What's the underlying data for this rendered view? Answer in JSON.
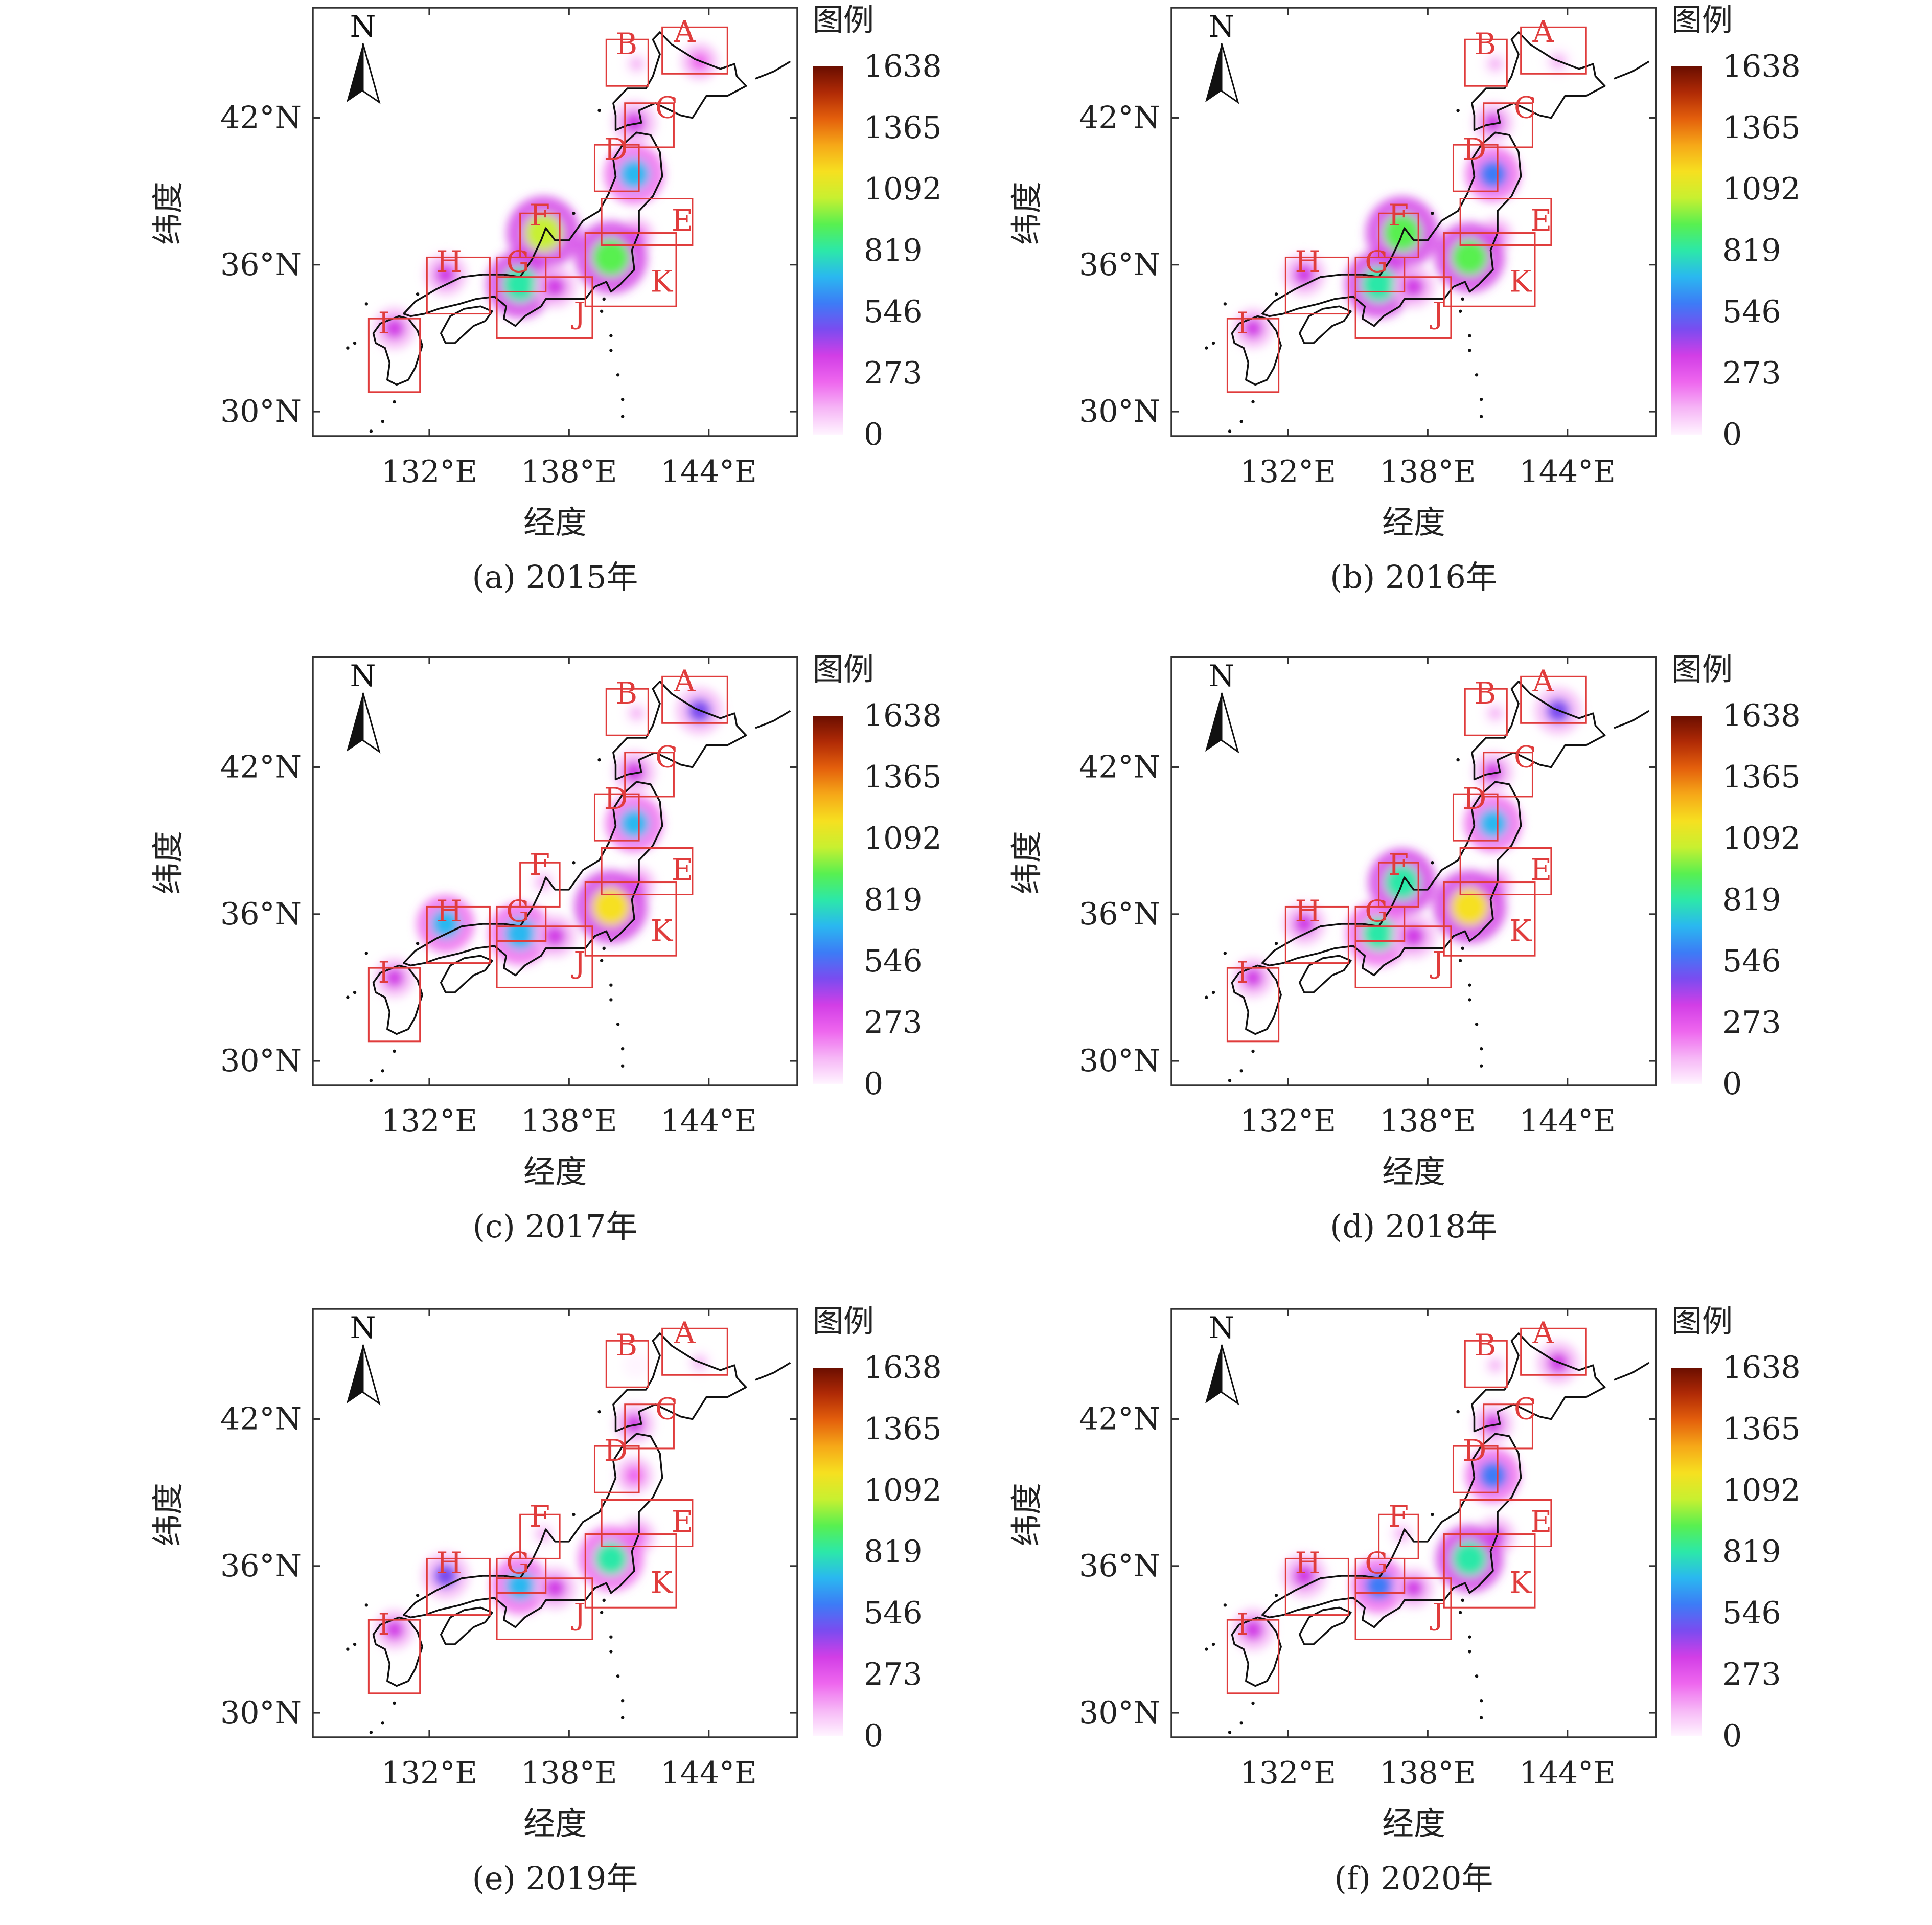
{
  "compass_label": "N",
  "legend_title": "图例",
  "colorbar_ticks": [
    "1638",
    "1365",
    "1092",
    "819",
    "546",
    "273",
    "0"
  ],
  "colorbar_colors": [
    "#fff4ff",
    "#f6b6f6",
    "#ee66ee",
    "#d23ee6",
    "#7a4cf0",
    "#3c7cf6",
    "#2ab8f0",
    "#2ce8a8",
    "#58f050",
    "#c8f030",
    "#f6e020",
    "#f6a818",
    "#e4600c",
    "#b02a06",
    "#6a0e00"
  ],
  "y_axis_label": "纬度",
  "x_axis_label": "经度",
  "x_ticks": [
    "132°E",
    "138°E",
    "144°E"
  ],
  "y_ticks": [
    "42°N",
    "36°N",
    "30°N"
  ],
  "region_labels": [
    "A",
    "B",
    "C",
    "D",
    "E",
    "F",
    "G",
    "H",
    "I",
    "J",
    "K"
  ],
  "box_color": "#e03c3c",
  "coast_color": "#111111",
  "chart_data": {
    "type": "heatmap",
    "legend_range": [
      0,
      1638
    ],
    "panels": [
      {
        "title": "(a) 2015年",
        "year": 2015,
        "hotspots": [
          {
            "region": "A",
            "lon": 143.6,
            "lat": 44.3,
            "value": 250
          },
          {
            "region": "B",
            "lon": 140.9,
            "lat": 44.2,
            "value": 80
          },
          {
            "region": "C",
            "lon": 140.8,
            "lat": 41.8,
            "value": 380
          },
          {
            "region": "D",
            "lon": 140.8,
            "lat": 39.7,
            "value": 700
          },
          {
            "region": "E",
            "lon": 140.9,
            "lat": 37.2,
            "value": 200
          },
          {
            "region": "F",
            "lon": 136.9,
            "lat": 37.3,
            "value": 1000
          },
          {
            "region": "G",
            "lon": 135.9,
            "lat": 35.2,
            "value": 850
          },
          {
            "region": "H",
            "lon": 132.7,
            "lat": 35.6,
            "value": 350
          },
          {
            "region": "I",
            "lon": 130.5,
            "lat": 33.4,
            "value": 350
          },
          {
            "region": "J",
            "lon": 137.4,
            "lat": 35.1,
            "value": 350
          },
          {
            "region": "K",
            "lon": 139.8,
            "lat": 36.3,
            "value": 950
          }
        ]
      },
      {
        "title": "(b) 2016年",
        "year": 2016,
        "hotspots": [
          {
            "region": "A",
            "lon": 143.6,
            "lat": 44.3,
            "value": 150
          },
          {
            "region": "B",
            "lon": 140.9,
            "lat": 44.2,
            "value": 100
          },
          {
            "region": "C",
            "lon": 140.8,
            "lat": 41.8,
            "value": 300
          },
          {
            "region": "D",
            "lon": 140.8,
            "lat": 39.7,
            "value": 600
          },
          {
            "region": "E",
            "lon": 140.9,
            "lat": 37.2,
            "value": 200
          },
          {
            "region": "F",
            "lon": 136.9,
            "lat": 37.3,
            "value": 950
          },
          {
            "region": "G",
            "lon": 135.9,
            "lat": 35.2,
            "value": 850
          },
          {
            "region": "H",
            "lon": 132.7,
            "lat": 35.6,
            "value": 350
          },
          {
            "region": "I",
            "lon": 130.5,
            "lat": 33.4,
            "value": 300
          },
          {
            "region": "J",
            "lon": 137.4,
            "lat": 35.1,
            "value": 350
          },
          {
            "region": "K",
            "lon": 139.8,
            "lat": 36.3,
            "value": 900
          }
        ]
      },
      {
        "title": "(c) 2017年",
        "year": 2017,
        "hotspots": [
          {
            "region": "A",
            "lon": 143.6,
            "lat": 44.3,
            "value": 450
          },
          {
            "region": "B",
            "lon": 140.9,
            "lat": 44.2,
            "value": 80
          },
          {
            "region": "C",
            "lon": 140.8,
            "lat": 41.8,
            "value": 350
          },
          {
            "region": "D",
            "lon": 140.8,
            "lat": 39.7,
            "value": 650
          },
          {
            "region": "E",
            "lon": 140.9,
            "lat": 37.2,
            "value": 250
          },
          {
            "region": "F",
            "lon": 136.9,
            "lat": 37.3,
            "value": 150
          },
          {
            "region": "G",
            "lon": 135.9,
            "lat": 35.2,
            "value": 750
          },
          {
            "region": "H",
            "lon": 132.7,
            "lat": 35.6,
            "value": 650
          },
          {
            "region": "I",
            "lon": 130.5,
            "lat": 33.4,
            "value": 300
          },
          {
            "region": "J",
            "lon": 137.4,
            "lat": 35.1,
            "value": 350
          },
          {
            "region": "K",
            "lon": 139.8,
            "lat": 36.3,
            "value": 1150
          }
        ]
      },
      {
        "title": "(d) 2018年",
        "year": 2018,
        "hotspots": [
          {
            "region": "A",
            "lon": 143.6,
            "lat": 44.3,
            "value": 450
          },
          {
            "region": "B",
            "lon": 140.9,
            "lat": 44.2,
            "value": 80
          },
          {
            "region": "C",
            "lon": 140.8,
            "lat": 41.8,
            "value": 300
          },
          {
            "region": "D",
            "lon": 140.8,
            "lat": 39.7,
            "value": 650
          },
          {
            "region": "E",
            "lon": 140.9,
            "lat": 37.2,
            "value": 200
          },
          {
            "region": "F",
            "lon": 136.9,
            "lat": 37.3,
            "value": 850
          },
          {
            "region": "G",
            "lon": 135.9,
            "lat": 35.2,
            "value": 800
          },
          {
            "region": "H",
            "lon": 132.7,
            "lat": 35.6,
            "value": 350
          },
          {
            "region": "I",
            "lon": 130.5,
            "lat": 33.4,
            "value": 300
          },
          {
            "region": "J",
            "lon": 137.4,
            "lat": 35.1,
            "value": 400
          },
          {
            "region": "K",
            "lon": 139.8,
            "lat": 36.3,
            "value": 1150
          }
        ]
      },
      {
        "title": "(e) 2019年",
        "year": 2019,
        "hotspots": [
          {
            "region": "A",
            "lon": 143.6,
            "lat": 44.3,
            "value": 80
          },
          {
            "region": "B",
            "lon": 140.9,
            "lat": 44.2,
            "value": 50
          },
          {
            "region": "C",
            "lon": 140.8,
            "lat": 41.8,
            "value": 300
          },
          {
            "region": "D",
            "lon": 140.8,
            "lat": 39.7,
            "value": 250
          },
          {
            "region": "E",
            "lon": 140.9,
            "lat": 37.2,
            "value": 250
          },
          {
            "region": "F",
            "lon": 136.9,
            "lat": 37.3,
            "value": 100
          },
          {
            "region": "G",
            "lon": 135.9,
            "lat": 35.2,
            "value": 650
          },
          {
            "region": "H",
            "lon": 132.7,
            "lat": 35.6,
            "value": 450
          },
          {
            "region": "I",
            "lon": 130.5,
            "lat": 33.4,
            "value": 300
          },
          {
            "region": "J",
            "lon": 137.4,
            "lat": 35.1,
            "value": 350
          },
          {
            "region": "K",
            "lon": 139.8,
            "lat": 36.3,
            "value": 800
          }
        ]
      },
      {
        "title": "(f) 2020年",
        "year": 2020,
        "hotspots": [
          {
            "region": "A",
            "lon": 143.6,
            "lat": 44.3,
            "value": 350
          },
          {
            "region": "B",
            "lon": 140.9,
            "lat": 44.2,
            "value": 60
          },
          {
            "region": "C",
            "lon": 140.8,
            "lat": 41.8,
            "value": 300
          },
          {
            "region": "D",
            "lon": 140.8,
            "lat": 39.7,
            "value": 600
          },
          {
            "region": "E",
            "lon": 140.9,
            "lat": 37.2,
            "value": 300
          },
          {
            "region": "F",
            "lon": 136.9,
            "lat": 37.3,
            "value": 120
          },
          {
            "region": "G",
            "lon": 135.9,
            "lat": 35.2,
            "value": 600
          },
          {
            "region": "H",
            "lon": 132.7,
            "lat": 35.6,
            "value": 400
          },
          {
            "region": "I",
            "lon": 130.5,
            "lat": 33.4,
            "value": 350
          },
          {
            "region": "J",
            "lon": 137.4,
            "lat": 35.1,
            "value": 300
          },
          {
            "region": "K",
            "lon": 139.8,
            "lat": 36.3,
            "value": 850
          }
        ]
      }
    ]
  }
}
